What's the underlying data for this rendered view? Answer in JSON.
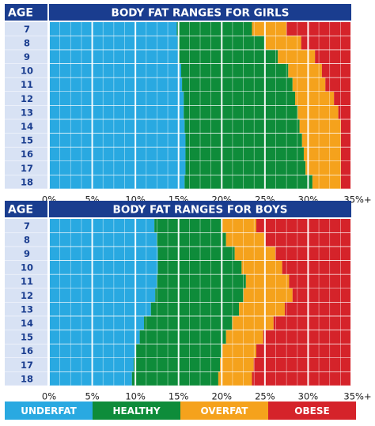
{
  "colors": {
    "underfat": "#29a9e1",
    "healthy": "#0e8c3a",
    "overfat": "#f5a21c",
    "obese": "#d5232a",
    "header": "#1a3d8f",
    "age_cell": "#d8e2f4",
    "age_text": "#1a3d8f"
  },
  "chart_data": [
    {
      "type": "bar",
      "stacked": true,
      "orientation": "horizontal",
      "title": "BODY FAT RANGES FOR GIRLS",
      "row_header": "AGE",
      "categories": [
        "7",
        "8",
        "9",
        "10",
        "11",
        "12",
        "13",
        "14",
        "15",
        "16",
        "17",
        "18"
      ],
      "x_ticks": [
        "0%",
        "5%",
        "10%",
        "15%",
        "20%",
        "25%",
        "30%",
        "35%+"
      ],
      "xlim": [
        0,
        35
      ],
      "boundaries": {
        "underfat_max": [
          14.8,
          14.9,
          15.0,
          15.3,
          15.4,
          15.6,
          15.6,
          15.7,
          15.8,
          15.8,
          15.8,
          15.7
        ],
        "healthy_max": [
          23.5,
          25.0,
          26.5,
          27.7,
          28.2,
          28.5,
          28.8,
          29.0,
          29.3,
          29.5,
          29.7,
          30.5
        ],
        "overfat_max": [
          27.5,
          29.2,
          30.8,
          31.6,
          32.0,
          33.0,
          33.5,
          33.8,
          33.8,
          33.8,
          33.8,
          33.8
        ]
      }
    },
    {
      "type": "bar",
      "stacked": true,
      "orientation": "horizontal",
      "title": "BODY FAT RANGES FOR BOYS",
      "row_header": "AGE",
      "categories": [
        "7",
        "8",
        "9",
        "10",
        "11",
        "12",
        "13",
        "14",
        "15",
        "16",
        "17",
        "18"
      ],
      "x_ticks": [
        "0%",
        "5%",
        "10%",
        "15%",
        "20%",
        "25%",
        "30%",
        "35%+"
      ],
      "xlim": [
        0,
        35
      ],
      "boundaries": {
        "underfat_max": [
          12.2,
          12.5,
          12.6,
          12.6,
          12.5,
          12.3,
          11.8,
          11.0,
          10.5,
          10.0,
          9.8,
          9.6
        ],
        "healthy_max": [
          20.0,
          20.5,
          21.5,
          22.3,
          22.8,
          22.5,
          22.0,
          21.2,
          20.5,
          20.0,
          19.8,
          19.6
        ],
        "overfat_max": [
          24.0,
          25.0,
          26.2,
          27.0,
          27.8,
          28.2,
          27.3,
          26.0,
          24.8,
          24.0,
          23.7,
          23.5
        ]
      }
    }
  ],
  "legend": {
    "items": [
      "UNDERFAT",
      "HEALTHY",
      "OVERFAT",
      "OBESE"
    ]
  }
}
